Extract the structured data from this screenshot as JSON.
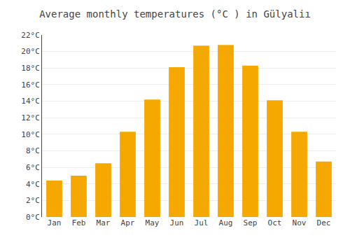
{
  "chart_data": {
    "type": "bar",
    "title": "Average monthly temperatures (°C ) in Gülyaliı",
    "categories": [
      "Jan",
      "Feb",
      "Mar",
      "Apr",
      "May",
      "Jun",
      "Jul",
      "Aug",
      "Sep",
      "Oct",
      "Nov",
      "Dec"
    ],
    "values": [
      4.4,
      5.0,
      6.5,
      10.3,
      14.2,
      18.1,
      20.7,
      20.8,
      18.3,
      14.1,
      10.3,
      6.7
    ],
    "color": "#F5A800",
    "ylim": [
      0,
      22
    ],
    "yticks": [
      {
        "value": 0,
        "label": "0°C"
      },
      {
        "value": 2,
        "label": "2°C"
      },
      {
        "value": 4,
        "label": "4°C"
      },
      {
        "value": 6,
        "label": "6°C"
      },
      {
        "value": 8,
        "label": "8°C"
      },
      {
        "value": 10,
        "label": "10°C"
      },
      {
        "value": 12,
        "label": "12°C"
      },
      {
        "value": 14,
        "label": "14°C"
      },
      {
        "value": 16,
        "label": "16°C"
      },
      {
        "value": 18,
        "label": "18°C"
      },
      {
        "value": 20,
        "label": "20°C"
      },
      {
        "value": 22,
        "label": "22°C"
      }
    ],
    "grid": true
  }
}
